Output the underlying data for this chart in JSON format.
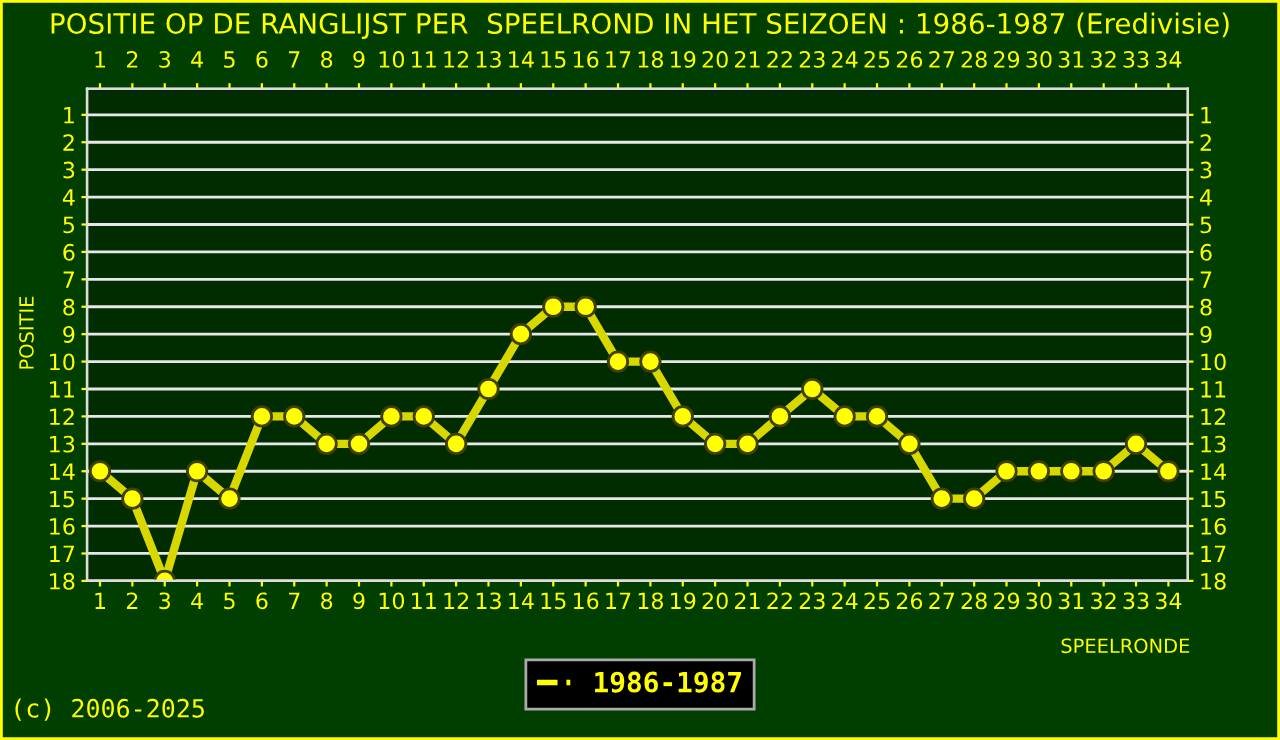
{
  "chart_data": {
    "type": "line",
    "title": "POSITIE OP DE RANGLIJST PER  SPEELROND IN HET SEIZOEN : 1986-1987 (Eredivisie)",
    "xlabel": "SPEELRONDE",
    "ylabel": "POSITIE",
    "x": [
      1,
      2,
      3,
      4,
      5,
      6,
      7,
      8,
      9,
      10,
      11,
      12,
      13,
      14,
      15,
      16,
      17,
      18,
      19,
      20,
      21,
      22,
      23,
      24,
      25,
      26,
      27,
      28,
      29,
      30,
      31,
      32,
      33,
      34
    ],
    "series": [
      {
        "name": "1986-1987",
        "color": "#ffff00",
        "values": [
          14,
          15,
          18,
          14,
          15,
          12,
          12,
          13,
          13,
          12,
          12,
          13,
          11,
          9,
          8,
          8,
          10,
          10,
          12,
          13,
          13,
          12,
          11,
          12,
          12,
          13,
          15,
          15,
          14,
          14,
          14,
          14,
          13,
          14
        ]
      }
    ],
    "xlim": [
      0.6,
      34.6
    ],
    "xticks": [
      1,
      2,
      3,
      4,
      5,
      6,
      7,
      8,
      9,
      10,
      11,
      12,
      13,
      14,
      15,
      16,
      17,
      18,
      19,
      20,
      21,
      22,
      23,
      24,
      25,
      26,
      27,
      28,
      29,
      30,
      31,
      32,
      33,
      34
    ],
    "x2lim": [
      0.6,
      34.6
    ],
    "x2ticks": [
      1,
      2,
      3,
      4,
      5,
      6,
      7,
      8,
      9,
      10,
      11,
      12,
      13,
      14,
      15,
      16,
      17,
      18,
      19,
      20,
      21,
      22,
      23,
      24,
      25,
      26,
      27,
      28,
      29,
      30,
      31,
      32,
      33,
      34
    ],
    "ylim": [
      18,
      0.05
    ],
    "yticks": [
      1,
      2,
      3,
      4,
      5,
      6,
      7,
      8,
      9,
      10,
      11,
      12,
      13,
      14,
      15,
      16,
      17,
      18
    ],
    "y2lim": [
      18,
      0.05
    ],
    "y2ticks": [
      1,
      2,
      3,
      4,
      5,
      6,
      7,
      8,
      9,
      10,
      11,
      12,
      13,
      14,
      15,
      16,
      17,
      18
    ],
    "grid": "y",
    "legend": "bottom",
    "marker": "circle",
    "line_style": "solid",
    "annotations": [
      "(c) 2006-2025"
    ]
  }
}
